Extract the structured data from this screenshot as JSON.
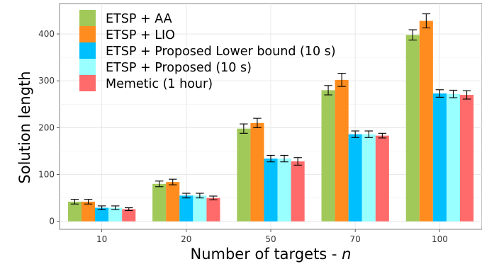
{
  "chart_data": {
    "type": "bar",
    "xlabel": "Number of targets - ",
    "xlabel_var": "n",
    "ylabel": "Solution length",
    "categories": [
      "10",
      "20",
      "50",
      "70",
      "100"
    ],
    "ylim": [
      -17,
      465
    ],
    "yticks": [
      0,
      100,
      200,
      300,
      400
    ],
    "grid": true,
    "legend_position": "top-left",
    "error_bars": true,
    "series": [
      {
        "name": "ETSP + AA",
        "color": "#A1C95A",
        "values": [
          42,
          80,
          198,
          280,
          398
        ],
        "errors": [
          5,
          6,
          10,
          10,
          11
        ]
      },
      {
        "name": "ETSP + LIO",
        "color": "#FF8C1E",
        "values": [
          42,
          84,
          210,
          302,
          428
        ],
        "errors": [
          5,
          6,
          10,
          14,
          15
        ]
      },
      {
        "name": "ETSP + Proposed Lower bound (10 s)",
        "color": "#00BFFF",
        "values": [
          29,
          55,
          134,
          186,
          273
        ],
        "errors": [
          4,
          5,
          7,
          7,
          8
        ]
      },
      {
        "name": "ETSP + Proposed (10 s)",
        "color": "#99FFFF",
        "values": [
          29,
          55,
          134,
          186,
          272
        ],
        "errors": [
          4,
          5,
          7,
          7,
          8
        ]
      },
      {
        "name": "Memetic (1 hour)",
        "color": "#FF6B6B",
        "values": [
          26,
          50,
          128,
          183,
          270
        ],
        "errors": [
          3,
          4,
          8,
          5,
          9
        ]
      }
    ]
  }
}
